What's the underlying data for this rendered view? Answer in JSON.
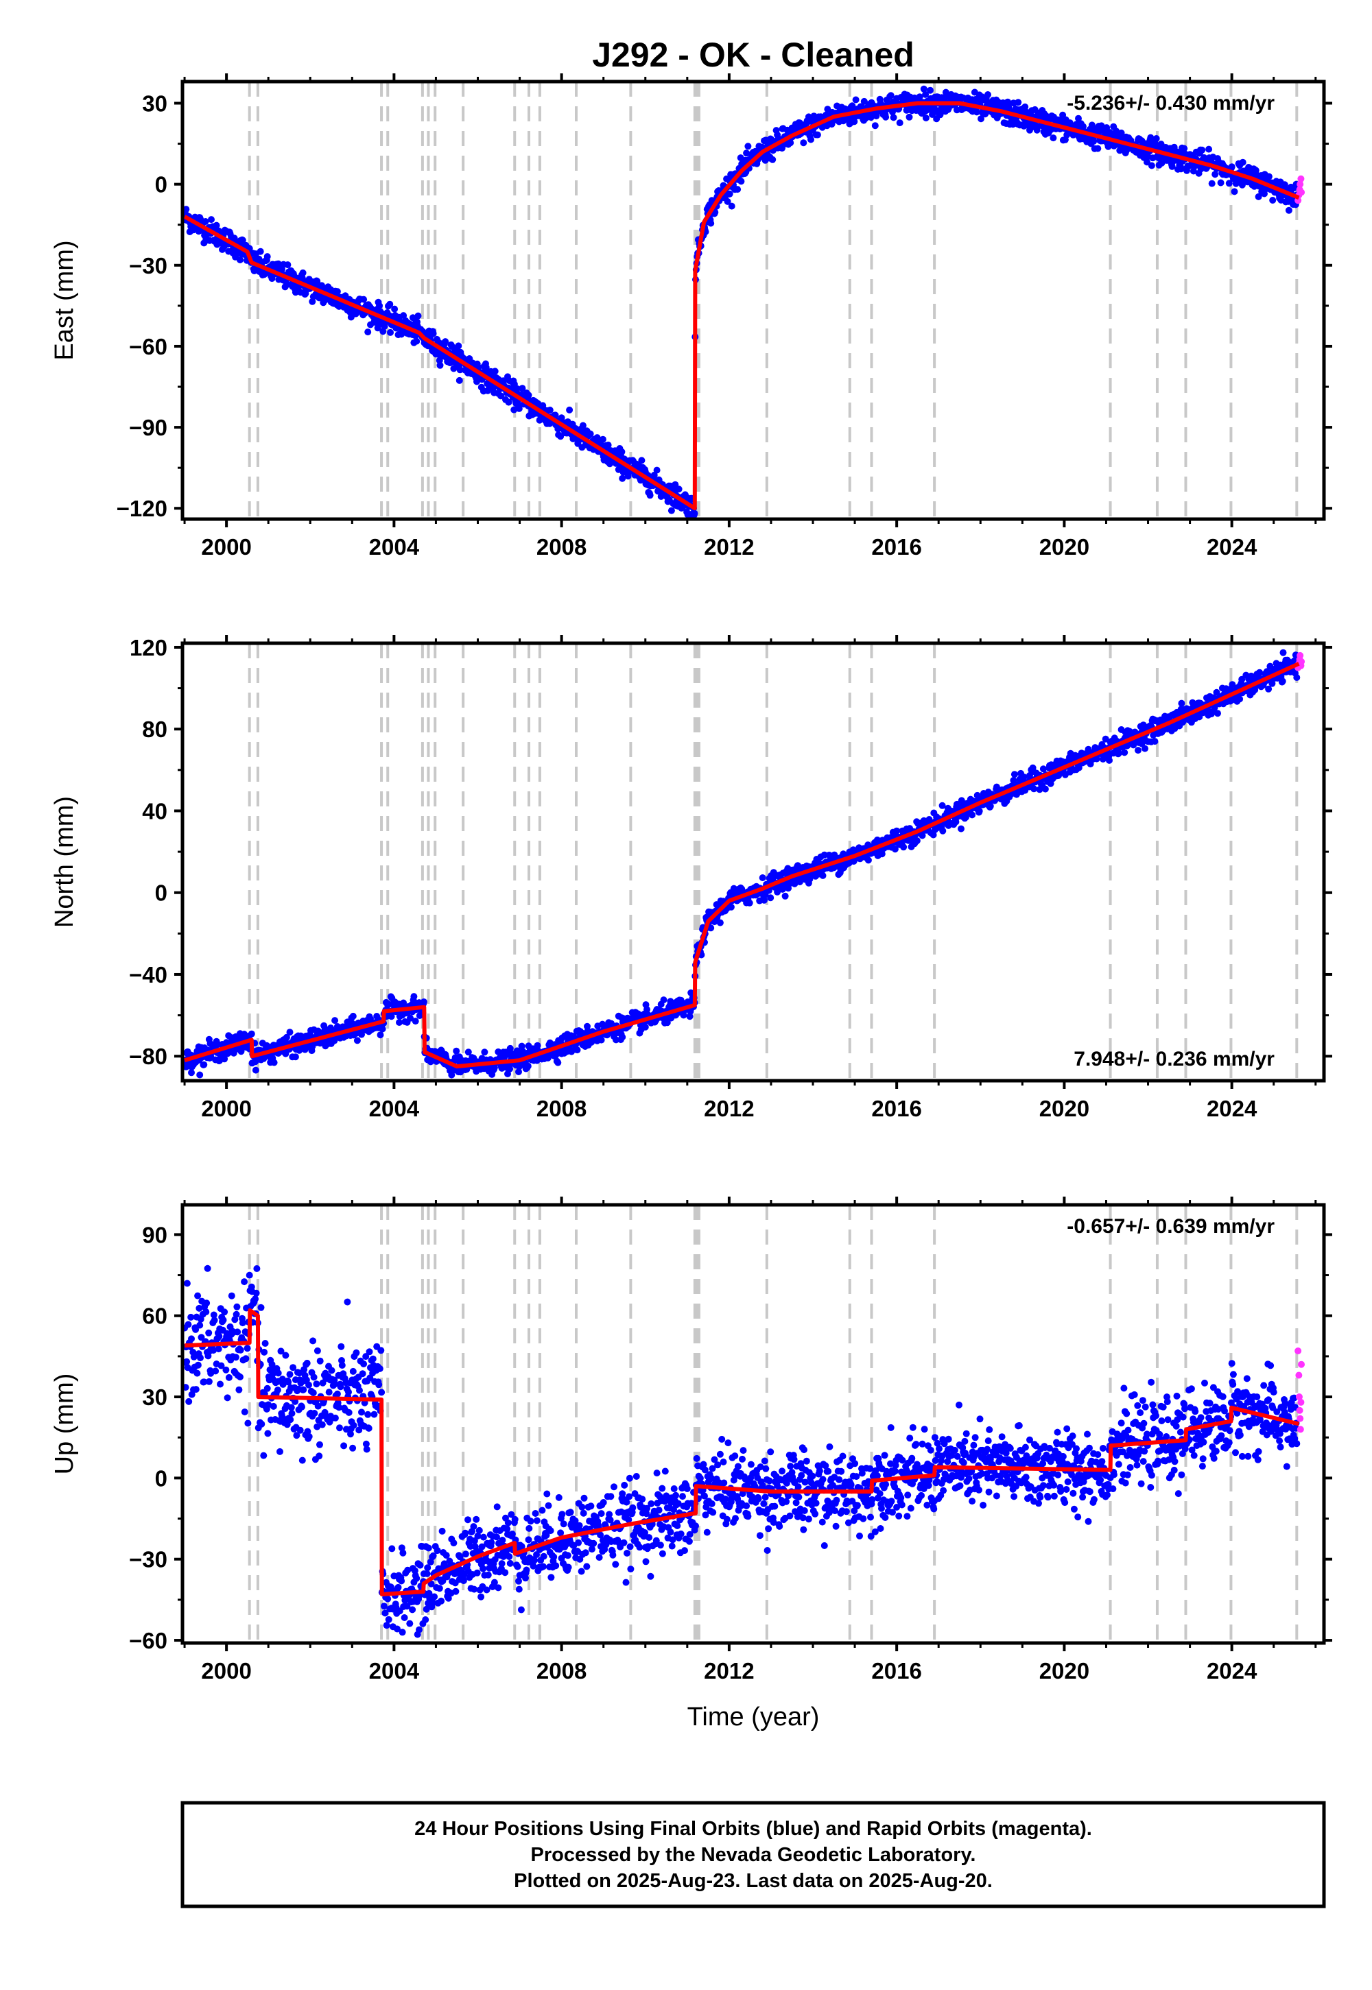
{
  "title": "J292  - OK - Cleaned",
  "xlabel": "Time (year)",
  "x_ticks": [
    2000,
    2004,
    2008,
    2012,
    2016,
    2020,
    2024
  ],
  "xlim": [
    1998.95,
    2026.2
  ],
  "equipment_change_epochs": [
    2000.55,
    2000.75,
    2003.7,
    2003.85,
    2004.68,
    2004.82,
    2004.98,
    2005.65,
    2006.88,
    2007.22,
    2007.48,
    2008.35,
    2009.65,
    2011.18,
    2011.23,
    2011.28,
    2012.9,
    2014.88,
    2015.4,
    2016.9,
    2021.1,
    2022.22,
    2022.9,
    2023.98,
    2025.55
  ],
  "colors": {
    "final": "#0000ff",
    "rapid": "#ff33ff",
    "model": "#ff0000",
    "breaks": "#c8c8c8"
  },
  "chart_data": [
    {
      "type": "scatter",
      "component": "east",
      "ylabel": "East (mm)",
      "ylim": [
        -124,
        38
      ],
      "y_ticks": [
        30,
        0,
        -30,
        -60,
        -90,
        -120
      ],
      "rate_label": "-5.236+/- 0.430 mm/yr",
      "rate_label_position": "top-right",
      "noise_mm": 2.2,
      "model": [
        [
          1999.0,
          -12
        ],
        [
          2000.5,
          -25
        ],
        [
          2000.6,
          -29
        ],
        [
          2004.6,
          -55
        ],
        [
          2004.72,
          -57
        ],
        [
          2011.18,
          -120
        ],
        [
          2011.19,
          -32
        ],
        [
          2011.4,
          -14
        ],
        [
          2011.8,
          -4
        ],
        [
          2012.3,
          5
        ],
        [
          2012.8,
          12
        ],
        [
          2013.5,
          18
        ],
        [
          2014.5,
          25
        ],
        [
          2015.5,
          28
        ],
        [
          2016.5,
          30
        ],
        [
          2017.5,
          30
        ],
        [
          2018.5,
          27
        ],
        [
          2019.5,
          23
        ],
        [
          2020.5,
          19
        ],
        [
          2021.5,
          15
        ],
        [
          2022.5,
          11
        ],
        [
          2023.5,
          7
        ],
        [
          2024.5,
          2
        ],
        [
          2025.6,
          -5
        ]
      ],
      "rapid": [
        [
          2025.58,
          -6
        ],
        [
          2025.6,
          -4
        ],
        [
          2025.62,
          -2
        ],
        [
          2025.63,
          0
        ],
        [
          2025.65,
          2
        ],
        [
          2025.66,
          -3
        ]
      ]
    },
    {
      "type": "scatter",
      "component": "north",
      "ylabel": "North (mm)",
      "ylim": [
        -92,
        122
      ],
      "y_ticks": [
        120,
        80,
        40,
        0,
        -40,
        -80
      ],
      "rate_label": "7.948+/- 0.236 mm/yr",
      "rate_label_position": "bottom-right",
      "noise_mm": 2.5,
      "model": [
        [
          1999.0,
          -82
        ],
        [
          2000.6,
          -72
        ],
        [
          2000.61,
          -80
        ],
        [
          2003.75,
          -63
        ],
        [
          2003.76,
          -58
        ],
        [
          2004.72,
          -56
        ],
        [
          2004.73,
          -78
        ],
        [
          2005.5,
          -85
        ],
        [
          2007.0,
          -82
        ],
        [
          2009.0,
          -68
        ],
        [
          2011.18,
          -55
        ],
        [
          2011.19,
          -34
        ],
        [
          2011.5,
          -14
        ],
        [
          2012.0,
          -4
        ],
        [
          2012.8,
          2
        ],
        [
          2013.5,
          8
        ],
        [
          2015.0,
          18
        ],
        [
          2016.5,
          30
        ],
        [
          2018.0,
          44
        ],
        [
          2019.5,
          57
        ],
        [
          2021.0,
          70
        ],
        [
          2022.5,
          83
        ],
        [
          2024.0,
          97
        ],
        [
          2025.6,
          112
        ]
      ],
      "rapid": [
        [
          2025.58,
          110
        ],
        [
          2025.6,
          112
        ],
        [
          2025.62,
          114
        ],
        [
          2025.63,
          116
        ],
        [
          2025.65,
          111
        ],
        [
          2025.66,
          113
        ]
      ]
    },
    {
      "type": "scatter",
      "component": "up",
      "ylabel": "Up (mm)",
      "ylim": [
        -61,
        101
      ],
      "y_ticks": [
        90,
        60,
        30,
        0,
        -30,
        -60
      ],
      "rate_label": "-0.657+/- 0.639 mm/yr",
      "rate_label_position": "top-right",
      "noise_mm": 7,
      "model": [
        [
          1999.0,
          49
        ],
        [
          2000.55,
          50
        ],
        [
          2000.56,
          62
        ],
        [
          2000.75,
          60
        ],
        [
          2000.76,
          30
        ],
        [
          2003.7,
          29
        ],
        [
          2003.71,
          -43
        ],
        [
          2004.7,
          -42
        ],
        [
          2004.71,
          -39
        ],
        [
          2005.0,
          -36
        ],
        [
          2006.0,
          -29
        ],
        [
          2006.88,
          -24
        ],
        [
          2006.89,
          -28
        ],
        [
          2008.0,
          -22
        ],
        [
          2009.65,
          -17
        ],
        [
          2011.2,
          -13
        ],
        [
          2011.21,
          -3
        ],
        [
          2013.0,
          -5
        ],
        [
          2015.4,
          -5
        ],
        [
          2015.41,
          -1
        ],
        [
          2016.9,
          1
        ],
        [
          2016.91,
          4
        ],
        [
          2021.1,
          3
        ],
        [
          2021.11,
          12
        ],
        [
          2022.9,
          14
        ],
        [
          2022.91,
          18
        ],
        [
          2023.98,
          21
        ],
        [
          2023.99,
          26
        ],
        [
          2025.6,
          20
        ]
      ],
      "rapid": [
        [
          2025.58,
          47
        ],
        [
          2025.6,
          38
        ],
        [
          2025.61,
          30
        ],
        [
          2025.62,
          25
        ],
        [
          2025.63,
          22
        ],
        [
          2025.64,
          18
        ],
        [
          2025.65,
          28
        ],
        [
          2025.66,
          42
        ]
      ]
    }
  ],
  "footer": {
    "line1": "24 Hour Positions Using Final Orbits (blue) and Rapid Orbits (magenta).",
    "line2": "Processed by the Nevada Geodetic Laboratory.",
    "line3": "Plotted on 2025-Aug-23. Last data on 2025-Aug-20."
  }
}
